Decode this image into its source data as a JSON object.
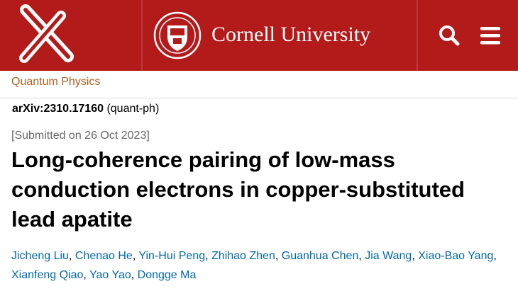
{
  "header": {
    "brand": "Cornell University"
  },
  "breadcrumb": "Quantum Physics",
  "paper": {
    "id": "arXiv:2310.17160",
    "category": "(quant-ph)",
    "submitted": "[Submitted on 26 Oct 2023]",
    "title": "Long-coherence pairing of low-mass conduction electrons in copper-substituted lead apatite",
    "authors": [
      "Jicheng Liu",
      "Chenao He",
      "Yin-Hui Peng",
      "Zhihao Zhen",
      "Guanhua Chen",
      "Jia Wang",
      "Xiao-Bao Yang",
      "Xianfeng Qiao",
      "Yao Yao",
      "Dongge Ma"
    ]
  }
}
